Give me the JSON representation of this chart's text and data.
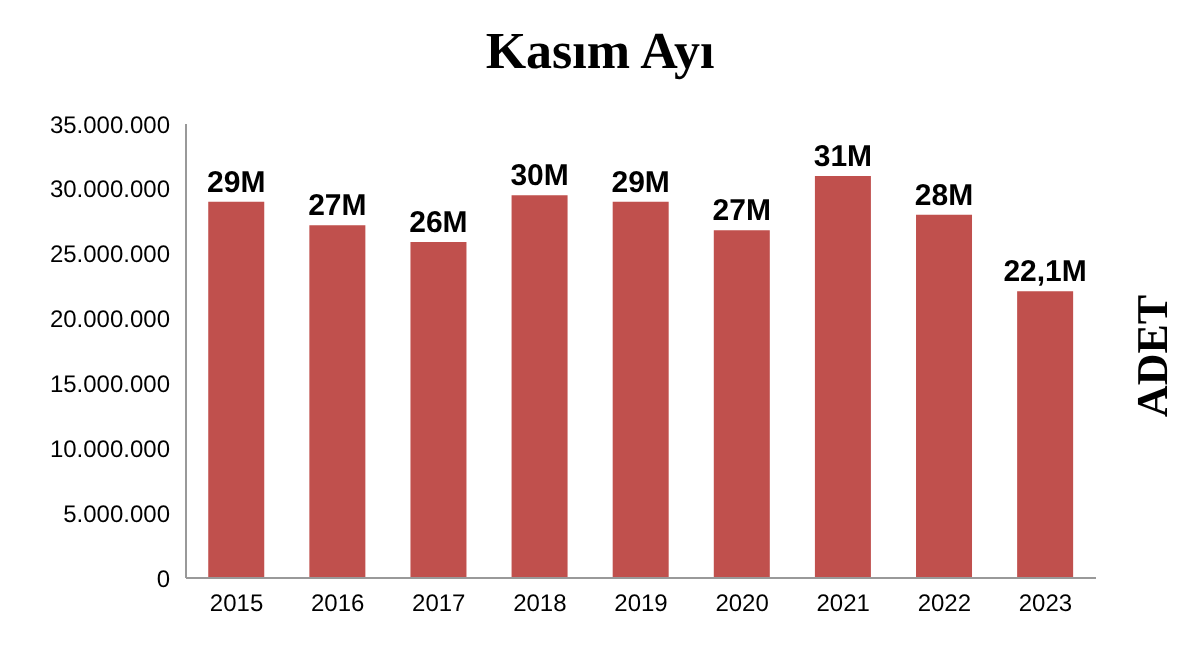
{
  "chart_data": {
    "type": "bar",
    "title": "Kasım Ayı",
    "ylabel": "ADET",
    "categories": [
      "2015",
      "2016",
      "2017",
      "2018",
      "2019",
      "2020",
      "2021",
      "2022",
      "2023"
    ],
    "values": [
      29000000,
      27200000,
      25900000,
      29500000,
      29000000,
      26800000,
      31000000,
      28000000,
      22100000
    ],
    "value_labels": [
      "29M",
      "27M",
      "26M",
      "30M",
      "29M",
      "27M",
      "31M",
      "28M",
      "22,1M"
    ],
    "color": "#c0504d",
    "ylim": [
      0,
      35000000
    ],
    "yticks": [
      0,
      {
        "value": 5000000,
        "label": "5.000.000"
      },
      {
        "value": 10000000,
        "label": "10.000.000"
      },
      {
        "value": 15000000,
        "label": "15.000.000"
      },
      {
        "value": 20000000,
        "label": "20.000.000"
      },
      {
        "value": 25000000,
        "label": "25.000.000"
      },
      {
        "value": 30000000,
        "label": "30.000.000"
      },
      {
        "value": 35000000,
        "label": "35.000.000"
      }
    ],
    "grid": false
  }
}
